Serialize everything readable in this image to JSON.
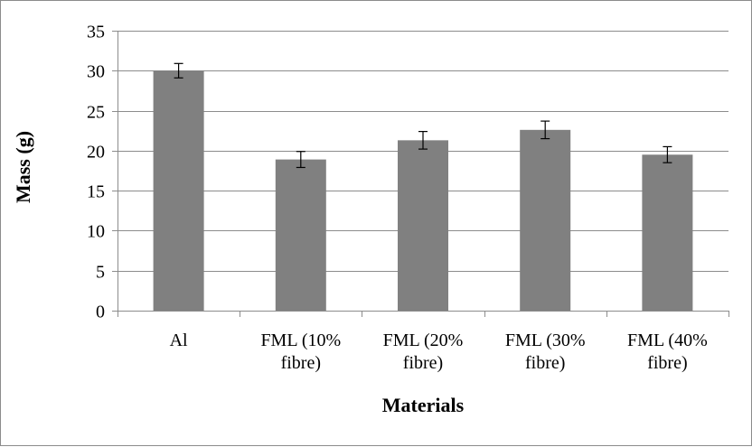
{
  "chart_data": {
    "type": "bar",
    "title": "",
    "xlabel": "Materials",
    "ylabel": "Mass (g)",
    "ylim": [
      0,
      35
    ],
    "yticks": [
      0,
      5,
      10,
      15,
      20,
      25,
      30,
      35
    ],
    "grid": true,
    "legend": "none",
    "bar_color": "#808080",
    "categories": [
      [
        "Al"
      ],
      [
        "FML (10%",
        "fibre)"
      ],
      [
        "FML (20%",
        "fibre)"
      ],
      [
        "FML (30%",
        "fibre)"
      ],
      [
        "FML (40%",
        "fibre)"
      ]
    ],
    "values": [
      30.0,
      18.9,
      21.3,
      22.6,
      19.5
    ],
    "error": [
      0.9,
      1.0,
      1.1,
      1.1,
      1.0
    ]
  }
}
